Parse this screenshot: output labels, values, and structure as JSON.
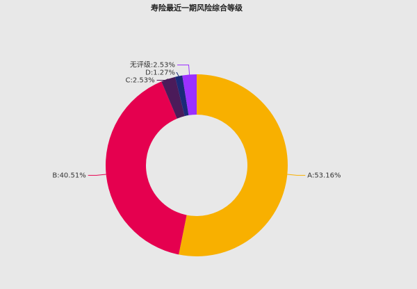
{
  "chart_data": {
    "type": "donut",
    "title": "寿险最近一期风险综合等级",
    "values": [
      53.16,
      40.51,
      2.53,
      1.27,
      2.53
    ],
    "value_labels": [
      "A:53.16%",
      "B:40.51%",
      "C:2.53%",
      "D:1.27%",
      "无评级:2.53%"
    ],
    "colors": [
      "#f8b000",
      "#e5004f",
      "#4b1b5a",
      "#1b2a78",
      "#9b30ff"
    ]
  }
}
